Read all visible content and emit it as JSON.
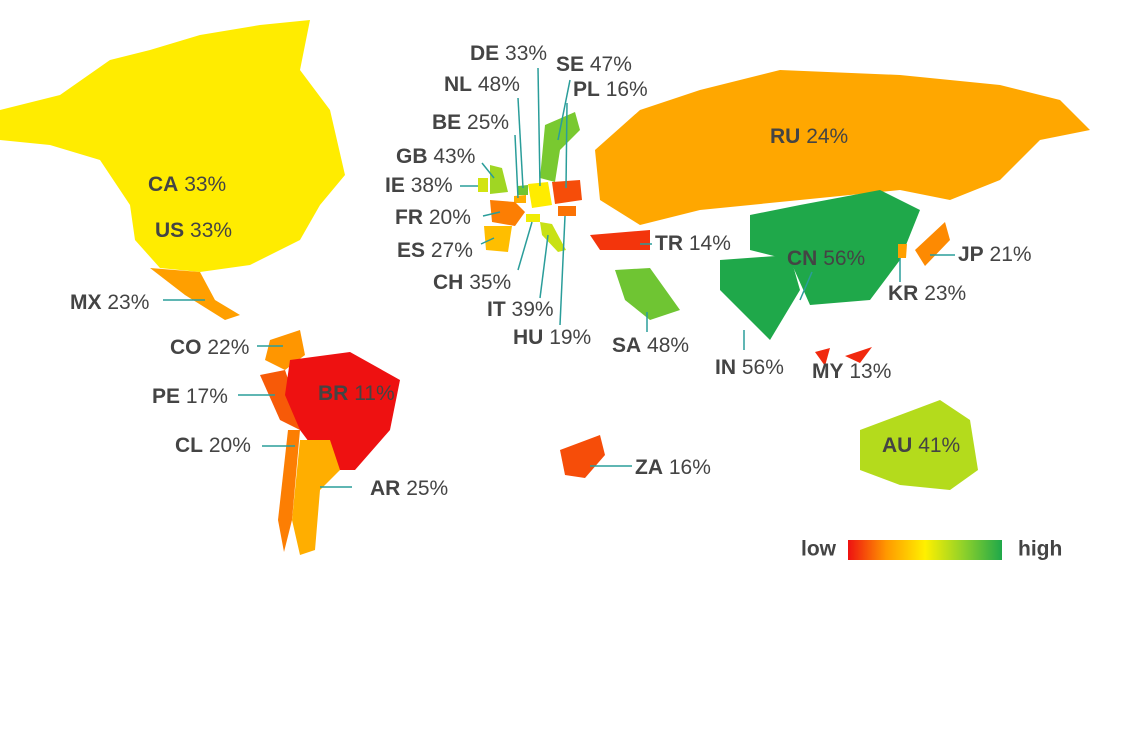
{
  "chart_data": {
    "type": "map",
    "categories": [
      "CA",
      "US",
      "MX",
      "CO",
      "PE",
      "BR",
      "CL",
      "AR",
      "DE",
      "SE",
      "PL",
      "NL",
      "BE",
      "GB",
      "IE",
      "FR",
      "ES",
      "CH",
      "IT",
      "HU",
      "RU",
      "TR",
      "SA",
      "IN",
      "CN",
      "KR",
      "JP",
      "MY",
      "ZA",
      "AU"
    ],
    "values": [
      33,
      33,
      23,
      22,
      17,
      11,
      20,
      25,
      33,
      47,
      16,
      48,
      25,
      43,
      38,
      20,
      27,
      35,
      39,
      19,
      24,
      14,
      48,
      56,
      56,
      23,
      21,
      13,
      16,
      41
    ],
    "value_labels": [
      "33%",
      "33%",
      "23%",
      "22%",
      "17%",
      "11%",
      "20%",
      "25%",
      "33%",
      "47%",
      "16%",
      "48%",
      "25%",
      "43%",
      "38%",
      "20%",
      "27%",
      "35%",
      "39%",
      "19%",
      "24%",
      "14%",
      "48%",
      "56%",
      "56%",
      "23%",
      "21%",
      "13%",
      "16%",
      "41%"
    ],
    "colors": [
      "#ee1111",
      "#ff9900",
      "#fff000",
      "#8fd12a",
      "#1fa84a"
    ],
    "legend": {
      "low": "low",
      "high": "high"
    }
  }
}
